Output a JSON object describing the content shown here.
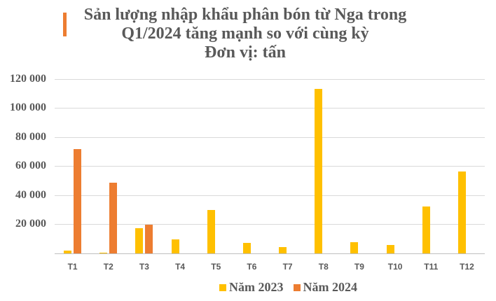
{
  "title": {
    "lines": [
      "Sản lượng nhập khẩu phân bón từ Nga trong",
      "Q1/2024 tăng mạnh so với cùng kỳ",
      "Đơn vị: tấn"
    ],
    "accent_color": "#ED7D31"
  },
  "legend": {
    "items": [
      {
        "label": "Năm 2023",
        "color": "#FFC000"
      },
      {
        "label": "Năm 2024",
        "color": "#ED7D31"
      }
    ]
  },
  "y_axis": {
    "ticks": [
      "120 000",
      "100 000",
      "80 000",
      "60 000",
      "40 000",
      "20 000"
    ],
    "tick_values": [
      120000,
      100000,
      80000,
      60000,
      40000,
      20000
    ]
  },
  "chart_data": {
    "type": "bar",
    "title": "Sản lượng nhập khẩu phân bón từ Nga trong Q1/2024 tăng mạnh so với cùng kỳ",
    "subtitle": "Đơn vị: tấn",
    "xlabel": "",
    "ylabel": "",
    "categories": [
      "T1",
      "T2",
      "T3",
      "T4",
      "T5",
      "T6",
      "T7",
      "T8",
      "T9",
      "T10",
      "T11",
      "T12"
    ],
    "series": [
      {
        "name": "Năm 2023",
        "color": "#FFC000",
        "values": [
          2000,
          700,
          17400,
          9600,
          29800,
          7200,
          4400,
          113100,
          7800,
          5900,
          32000,
          56300
        ]
      },
      {
        "name": "Năm 2024",
        "color": "#ED7D31",
        "values": [
          71800,
          48600,
          19500,
          null,
          null,
          null,
          null,
          null,
          null,
          null,
          null,
          null
        ]
      }
    ],
    "ylim": [
      0,
      120000
    ],
    "yticks": [
      0,
      20000,
      40000,
      60000,
      80000,
      100000,
      120000
    ],
    "grid": true,
    "legend_position": "bottom"
  }
}
